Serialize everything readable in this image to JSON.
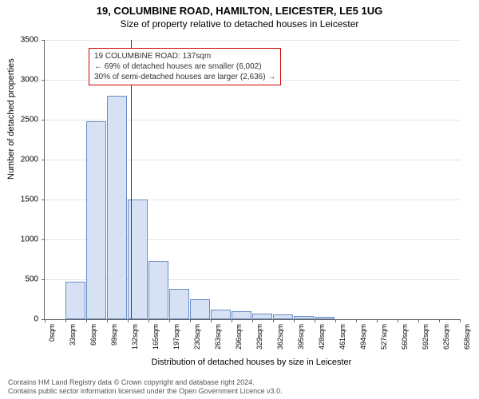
{
  "title": "19, COLUMBINE ROAD, HAMILTON, LEICESTER, LE5 1UG",
  "subtitle": "Size of property relative to detached houses in Leicester",
  "ylabel": "Number of detached properties",
  "xlabel": "Distribution of detached houses by size in Leicester",
  "chart": {
    "type": "histogram",
    "ylim": [
      0,
      3500
    ],
    "ytick_step": 500,
    "yticks": [
      0,
      500,
      1000,
      1500,
      2000,
      2500,
      3000,
      3500
    ],
    "x_categories": [
      "0sqm",
      "33sqm",
      "66sqm",
      "99sqm",
      "132sqm",
      "165sqm",
      "197sqm",
      "230sqm",
      "263sqm",
      "296sqm",
      "329sqm",
      "362sqm",
      "395sqm",
      "428sqm",
      "461sqm",
      "494sqm",
      "527sqm",
      "560sqm",
      "592sqm",
      "625sqm",
      "658sqm"
    ],
    "values": [
      0,
      470,
      2480,
      2800,
      1500,
      730,
      380,
      250,
      120,
      100,
      70,
      60,
      40,
      30,
      0,
      0,
      0,
      0,
      0,
      0
    ],
    "bar_fill": "#d6e2f4",
    "bar_stroke": "#6a8cc7",
    "background": "#ffffff",
    "grid_color": "#cccccc",
    "axis_color": "#666666",
    "reference_line": {
      "x_value": 137,
      "x_max": 658,
      "color": "#cc0000"
    }
  },
  "annotation": {
    "line1": "19 COLUMBINE ROAD: 137sqm",
    "line2": "← 69% of detached houses are smaller (6,002)",
    "line3": "30% of semi-detached houses are larger (2,636) →",
    "border_color": "#cc0000",
    "text_color": "#333333"
  },
  "footer": {
    "line1": "Contains HM Land Registry data © Crown copyright and database right 2024.",
    "line2": "Contains public sector information licensed under the Open Government Licence v3.0."
  }
}
